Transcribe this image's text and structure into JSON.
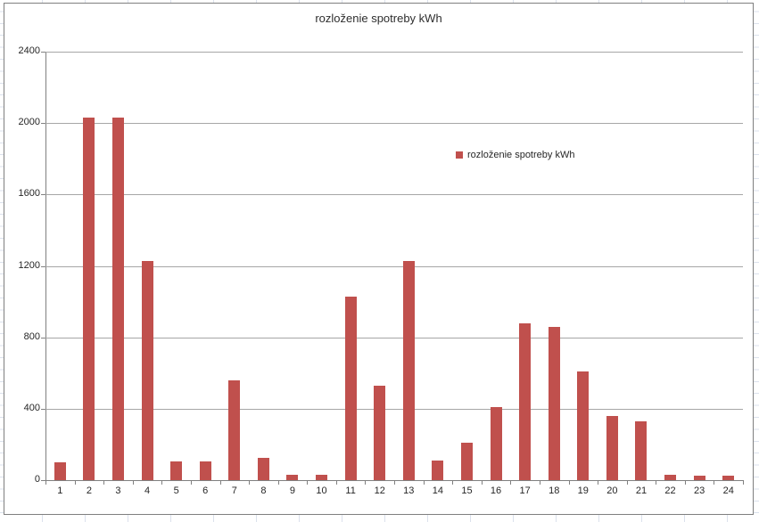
{
  "title": "rozloženie spotreby kWh",
  "legend": {
    "label": "rozloženie spotreby kWh"
  },
  "chart_data": {
    "type": "bar",
    "title": "rozloženie spotreby kWh",
    "categories": [
      "1",
      "2",
      "3",
      "4",
      "5",
      "6",
      "7",
      "8",
      "9",
      "10",
      "11",
      "12",
      "13",
      "14",
      "15",
      "16",
      "17",
      "18",
      "19",
      "20",
      "21",
      "22",
      "23",
      "24"
    ],
    "values": [
      100,
      2030,
      2030,
      1225,
      105,
      105,
      560,
      125,
      30,
      30,
      1030,
      530,
      1225,
      110,
      210,
      410,
      880,
      860,
      610,
      360,
      330,
      30,
      25,
      25
    ],
    "series_name": "rozloženie spotreby kWh",
    "xlabel": "",
    "ylabel": "",
    "ylim": [
      0,
      2400
    ],
    "yticks": [
      0,
      400,
      800,
      1200,
      1600,
      2000,
      2400
    ],
    "grid": true,
    "legend_position": "inside-right",
    "bar_color": "#c0504d",
    "gridline_color": "#a6a6a6",
    "axis_color": "#808080"
  }
}
